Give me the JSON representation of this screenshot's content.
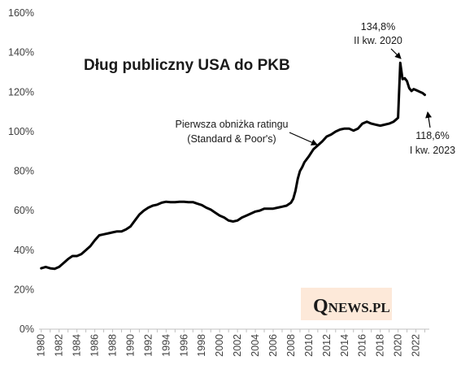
{
  "chart_data": {
    "type": "line",
    "title": "Dług publiczny USA do PKB",
    "xlabel": "",
    "ylabel": "",
    "xlim": [
      1979.75,
      2023.5
    ],
    "ylim": [
      0,
      160
    ],
    "yticks": [
      "0%",
      "20%",
      "40%",
      "60%",
      "80%",
      "100%",
      "120%",
      "140%",
      "160%"
    ],
    "xticks": [
      "1980",
      "1982",
      "1984",
      "1986",
      "1988",
      "1990",
      "1992",
      "1994",
      "1996",
      "1998",
      "2000",
      "2002",
      "2004",
      "2006",
      "2008",
      "2010",
      "2012",
      "2014",
      "2016",
      "2018",
      "2020",
      "2022"
    ],
    "grid": false,
    "legend": "none",
    "line_color": "#000000",
    "series": [
      {
        "x": [
          1980.0,
          1980.5,
          1981.0,
          1981.5,
          1982.0,
          1982.5,
          1983.0,
          1983.5,
          1984.0,
          1984.5,
          1985.0,
          1985.5,
          1986.0,
          1986.5,
          1987.0,
          1987.5,
          1988.0,
          1988.5,
          1989.0,
          1989.5,
          1990.0,
          1990.5,
          1991.0,
          1991.5,
          1992.0,
          1992.5,
          1993.0,
          1993.5,
          1994.0,
          1994.5,
          1995.0,
          1995.5,
          1996.0,
          1996.5,
          1997.0,
          1997.5,
          1998.0,
          1998.5,
          1999.0,
          1999.5,
          2000.0,
          2000.5,
          2001.0,
          2001.5,
          2002.0,
          2002.5,
          2003.0,
          2003.5,
          2004.0,
          2004.5,
          2005.0,
          2005.5,
          2006.0,
          2006.5,
          2007.0,
          2007.5,
          2008.0,
          2008.25,
          2008.5,
          2008.75,
          2009.0,
          2009.25,
          2009.5,
          2010.0,
          2010.5,
          2011.0,
          2011.5,
          2012.0,
          2012.5,
          2013.0,
          2013.5,
          2014.0,
          2014.5,
          2015.0,
          2015.5,
          2016.0,
          2016.5,
          2017.0,
          2017.5,
          2018.0,
          2018.5,
          2019.0,
          2019.5,
          2019.75,
          2020.0,
          2020.25,
          2020.5,
          2020.75,
          2021.0,
          2021.25,
          2021.5,
          2021.75,
          2022.0,
          2022.25,
          2022.5,
          2022.75,
          2023.0
        ],
        "y": [
          30.8,
          31.5,
          30.8,
          30.5,
          31.5,
          33.5,
          35.5,
          37.0,
          37.0,
          38.0,
          40.0,
          42.0,
          45.0,
          47.5,
          48.0,
          48.5,
          49.0,
          49.5,
          49.5,
          50.5,
          52.0,
          55.0,
          58.0,
          60.0,
          61.5,
          62.5,
          63.0,
          64.0,
          64.5,
          64.3,
          64.3,
          64.5,
          64.5,
          64.3,
          64.3,
          63.5,
          62.8,
          61.5,
          60.5,
          59.0,
          57.5,
          56.5,
          55.0,
          54.5,
          55.0,
          56.5,
          57.5,
          58.5,
          59.5,
          60.0,
          61.0,
          61.0,
          61.0,
          61.5,
          62.0,
          62.5,
          64.0,
          66.0,
          70.0,
          76.0,
          80.0,
          82.0,
          84.5,
          87.5,
          91.0,
          93.0,
          95.0,
          97.5,
          98.5,
          100.0,
          101.0,
          101.5,
          101.5,
          100.5,
          101.5,
          104.0,
          105.0,
          104.0,
          103.5,
          103.0,
          103.5,
          104.0,
          105.0,
          106.0,
          107.0,
          134.8,
          126.5,
          127.0,
          125.5,
          122.0,
          120.5,
          121.5,
          121.0,
          120.5,
          120.0,
          119.5,
          118.6
        ]
      }
    ]
  },
  "annotations": {
    "peak_value": "134,8%",
    "peak_period": "II kw. 2020",
    "last_value": "118,6%",
    "last_period": "I kw. 2023",
    "rating_line1": "Pierwsza obniżka ratingu",
    "rating_line2": "(Standard & Poor's)"
  },
  "logo": {
    "q": "Q",
    "rest": "NEWS.PL",
    "background": "#fde9d9"
  },
  "colors": {
    "axis": "#bfbfbf",
    "tick_text": "#404040",
    "line": "#000000"
  }
}
